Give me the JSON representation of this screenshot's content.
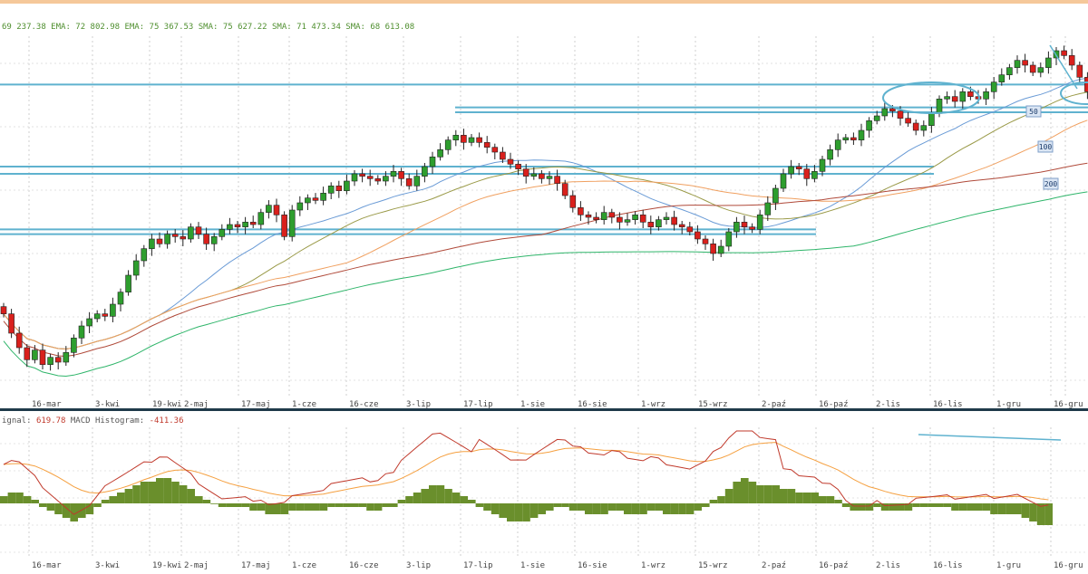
{
  "indicators_text": "69 237.38 EMA: 72 802.98 EMA: 75 367.53 SMA: 75 627.22 SMA: 71 473.34 SMA: 68 613.08",
  "macd_text_prefix": "ignal: ",
  "macd_signal_value": "619.78",
  "macd_hist_label": " MACD Histogram: ",
  "macd_hist_value": "-411.36",
  "colors": {
    "up": "#2e9e2e",
    "down": "#d9201c",
    "hline": "#5fb2cf",
    "ma50": "#6a9bd6",
    "ma_olive": "#9a9a48",
    "ma100": "#f0a060",
    "ma200": "#b04a3a",
    "ma_green": "#2fb56a",
    "hist": "#6a8f2c",
    "macd": "#c0392b",
    "signal": "#f5a040",
    "top_bar": "#f5c89a"
  },
  "chart_data": [
    {
      "type": "candlestick",
      "x_tick_labels": [
        "16-mar",
        "3-kwi",
        "19-kwi",
        "2-maj",
        "17-maj",
        "1-cze",
        "16-cze",
        "3-lip",
        "17-lip",
        "1-sie",
        "16-sie",
        "1-wrz",
        "15-wrz",
        "2-paź",
        "16-paź",
        "2-lis",
        "16-lis",
        "1-gru",
        "16-gru"
      ],
      "y_axis_printed": false,
      "ma_labels": [
        "50",
        "100",
        "200"
      ],
      "closes": [
        62000,
        61200,
        60600,
        60100,
        60500,
        59900,
        60200,
        60000,
        60400,
        61000,
        61500,
        61800,
        62000,
        61900,
        62400,
        62900,
        63600,
        64200,
        64700,
        65100,
        64900,
        65300,
        65200,
        65100,
        65600,
        65300,
        64900,
        65200,
        65500,
        65700,
        65600,
        65800,
        65700,
        66200,
        66500,
        66100,
        65200,
        66300,
        66600,
        66800,
        66700,
        67000,
        67300,
        67100,
        67500,
        67800,
        67700,
        67600,
        67500,
        67700,
        67900,
        67600,
        67300,
        67700,
        68100,
        68500,
        68800,
        69200,
        69400,
        69100,
        69300,
        69100,
        68900,
        68700,
        68400,
        68200,
        68000,
        67700,
        67800,
        67600,
        67700,
        67400,
        66900,
        66400,
        66100,
        66000,
        65900,
        66200,
        66000,
        65800,
        65900,
        66100,
        65800,
        65600,
        65900,
        66000,
        65700,
        65600,
        65400,
        65100,
        64900,
        64500,
        64800,
        65400,
        65800,
        65600,
        65500,
        66100,
        66600,
        67200,
        67800,
        68100,
        68000,
        67600,
        67900,
        68400,
        68800,
        69200,
        69300,
        69200,
        69600,
        70000,
        70200,
        70500,
        70400,
        70100,
        69900,
        69600,
        69800,
        70300,
        70900,
        71000,
        70800,
        71200,
        71000,
        70900,
        71200,
        71600,
        71900,
        72200,
        72500,
        72300,
        72000,
        72200,
        72600,
        72900,
        72700,
        72300,
        71800,
        71200
      ]
    },
    {
      "type": "bar+line",
      "name": "MACD",
      "histogram": [
        2,
        3,
        3,
        2,
        1,
        -1,
        -2,
        -3,
        -4,
        -5,
        -4,
        -3,
        -1,
        1,
        2,
        3,
        4,
        5,
        6,
        6,
        7,
        7,
        6,
        5,
        4,
        2,
        1,
        0,
        -1,
        -1,
        -1,
        -1,
        -2,
        -2,
        -3,
        -3,
        -3,
        -2,
        -2,
        -2,
        -2,
        -2,
        -1,
        -1,
        -1,
        -1,
        -1,
        -2,
        -2,
        -1,
        -1,
        1,
        2,
        3,
        4,
        5,
        5,
        4,
        3,
        2,
        1,
        -1,
        -2,
        -3,
        -4,
        -5,
        -5,
        -5,
        -4,
        -3,
        -2,
        -1,
        -1,
        -2,
        -2,
        -3,
        -3,
        -3,
        -2,
        -2,
        -3,
        -3,
        -3,
        -2,
        -2,
        -3,
        -3,
        -3,
        -3,
        -2,
        -1,
        1,
        2,
        4,
        6,
        7,
        6,
        5,
        5,
        5,
        4,
        4,
        3,
        3,
        3,
        2,
        2,
        1,
        -1,
        -2,
        -2,
        -2,
        -1,
        -2,
        -2,
        -2,
        -2,
        -1,
        -1,
        -1,
        -1,
        -1,
        -2,
        -2,
        -2,
        -2,
        -2,
        -3,
        -3,
        -3,
        -3,
        -4,
        -5,
        -6,
        -6
      ]
    }
  ]
}
